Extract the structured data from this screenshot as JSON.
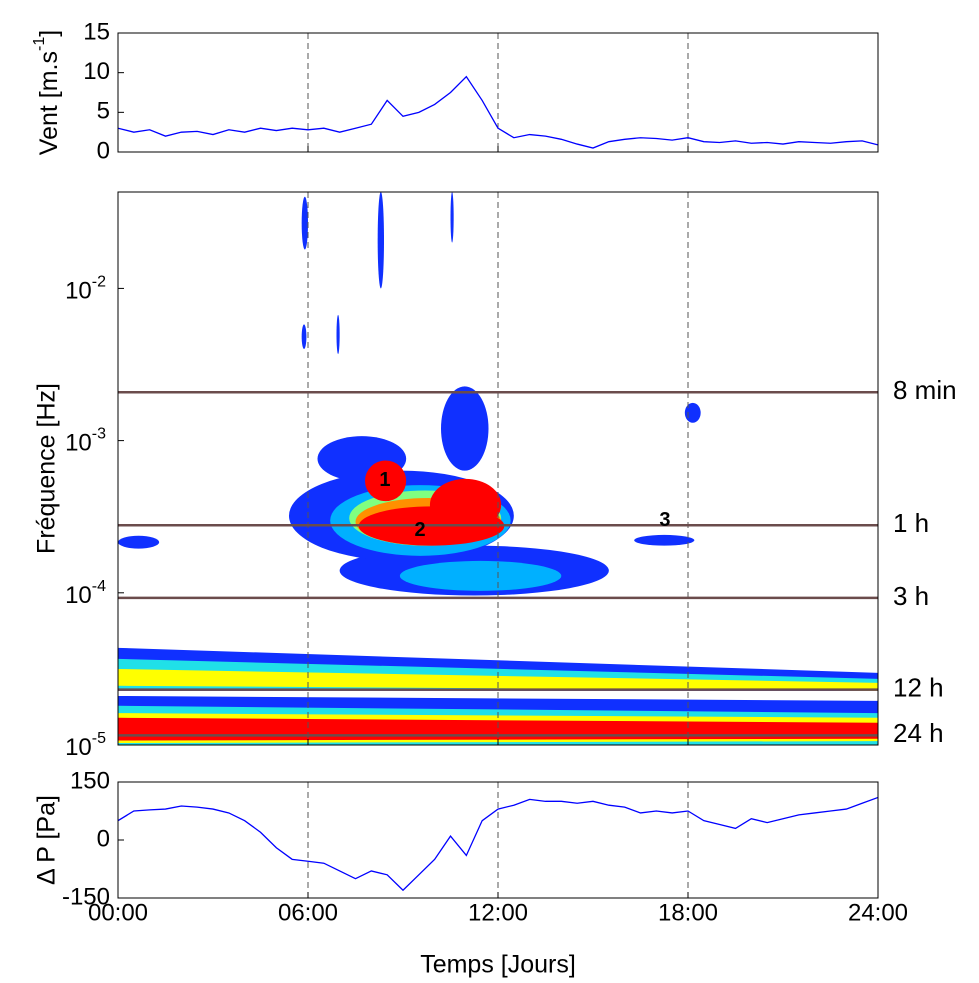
{
  "chart_data": [
    {
      "type": "line",
      "ylabel": {
        "text": "Vent [m.s",
        "sup": "-1",
        "after": "]"
      },
      "x": [
        0,
        0.5,
        1,
        1.5,
        2,
        2.5,
        3,
        3.5,
        4,
        4.5,
        5,
        5.5,
        6,
        6.5,
        7,
        7.5,
        8,
        8.5,
        9,
        9.5,
        10,
        10.5,
        11,
        11.5,
        12,
        12.5,
        13,
        13.5,
        14,
        14.5,
        15,
        15.5,
        16,
        16.5,
        17,
        17.5,
        18,
        18.5,
        19,
        19.5,
        20,
        20.5,
        21,
        21.5,
        22,
        22.5,
        23,
        23.5,
        24
      ],
      "series": [
        {
          "color": "#0000ff",
          "values": [
            3,
            2.5,
            2.8,
            2,
            2.5,
            2.6,
            2.2,
            2.8,
            2.5,
            3,
            2.7,
            3,
            2.8,
            3,
            2.5,
            3,
            3.5,
            6.5,
            4.5,
            5,
            6,
            7.5,
            9.5,
            6.5,
            3,
            1.8,
            2.2,
            2,
            1.6,
            1,
            0.5,
            1.3,
            1.6,
            1.8,
            1.7,
            1.5,
            1.8,
            1.3,
            1.2,
            1.4,
            1.1,
            1.2,
            1,
            1.3,
            1.2,
            1.1,
            1.3,
            1.4,
            0.9
          ]
        }
      ],
      "xlim": [
        0,
        24
      ],
      "xticks": [
        0,
        6,
        12,
        18,
        24
      ],
      "ylim": [
        0,
        15
      ],
      "yticks": [
        0,
        5,
        10,
        15
      ]
    },
    {
      "type": "contour",
      "log_y": true,
      "ylabel": "Fréquence [Hz]",
      "xlim": [
        0,
        24
      ],
      "xticks": [
        0,
        6,
        12,
        18,
        24
      ],
      "ylim": [
        1e-05,
        0.043
      ],
      "yticks": [
        {
          "value": 1e-05,
          "label": "10",
          "sup": "-5"
        },
        {
          "value": 0.0001,
          "label": "10",
          "sup": "-4"
        },
        {
          "value": 0.001,
          "label": "10",
          "sup": "-3"
        },
        {
          "value": 0.01,
          "label": "10",
          "sup": "-2"
        }
      ],
      "level_colors": [
        "#1030ff",
        "#0070ff",
        "#00b0ff",
        "#20e0e8",
        "#80ff80",
        "#ffff00",
        "#ff9000",
        "#ff0000"
      ],
      "bands": [
        {
          "y_start": [
            4.35e-05,
            2.27e-05
          ],
          "y_end": [
            2.98e-05,
            2.27e-05
          ],
          "level": 0
        },
        {
          "y_start": [
            3.68e-05,
            2.33e-05
          ],
          "y_end": [
            2.72e-05,
            2.33e-05
          ],
          "level": 3
        },
        {
          "y_start": [
            3.16e-05,
            2.45e-05
          ],
          "y_end": [
            2.56e-05,
            2.27e-05
          ],
          "level": 5
        },
        {
          "y_start": [
            2.1e-05,
            1e-05
          ],
          "y_end": [
            1.95e-05,
            1e-05
          ],
          "level": 0
        },
        {
          "y_start": [
            1.81e-05,
            1e-05
          ],
          "y_end": [
            1.62e-05,
            1e-05
          ],
          "level": 3
        },
        {
          "y_start": [
            1.62e-05,
            1.03e-05
          ],
          "y_end": [
            1.51e-05,
            1.06e-05
          ],
          "level": 5
        },
        {
          "y_start": [
            1.51e-05,
            1.07e-05
          ],
          "y_end": [
            1.4e-05,
            1.1e-05
          ],
          "level": 7
        }
      ],
      "regions": [
        {
          "x": [
            5.8,
            6.0
          ],
          "y": [
            0.018,
            0.04
          ],
          "level": 0
        },
        {
          "x": [
            8.2,
            8.4
          ],
          "y": [
            0.01,
            0.043
          ],
          "level": 0
        },
        {
          "x": [
            10.5,
            10.6
          ],
          "y": [
            0.02,
            0.043
          ],
          "level": 0
        },
        {
          "x": [
            5.8,
            5.95
          ],
          "y": [
            0.004,
            0.0058
          ],
          "level": 0
        },
        {
          "x": [
            6.9,
            7.0
          ],
          "y": [
            0.0037,
            0.0067
          ],
          "level": 0
        },
        {
          "x": [
            0,
            1.3
          ],
          "y": [
            0.000195,
            0.000237
          ],
          "level": 0
        },
        {
          "x": [
            16.3,
            18.2
          ],
          "y": [
            0.000204,
            0.00024
          ],
          "level": 0
        },
        {
          "x": [
            17.9,
            18.4
          ],
          "y": [
            0.00131,
            0.00177
          ],
          "level": 0
        },
        {
          "x": [
            7.0,
            15.5
          ],
          "y": [
            9.6e-05,
            0.000204
          ],
          "level": 0
        },
        {
          "x": [
            5.4,
            12.5
          ],
          "y": [
            0.000162,
            0.000635
          ],
          "level": 0
        },
        {
          "x": [
            6.3,
            9.1
          ],
          "y": [
            0.00054,
            0.00107
          ],
          "level": 0
        },
        {
          "x": [
            10.2,
            11.7
          ],
          "y": [
            0.000635,
            0.00227
          ],
          "level": 0
        },
        {
          "x": [
            6.7,
            12.4
          ],
          "y": [
            0.000175,
            0.00051
          ],
          "level": 2
        },
        {
          "x": [
            8.9,
            14.0
          ],
          "y": [
            0.000103,
            0.000162
          ],
          "level": 2
        },
        {
          "x": [
            7.3,
            12.1
          ],
          "y": [
            0.000204,
            0.00047
          ],
          "level": 4
        },
        {
          "x": [
            7.5,
            12.1
          ],
          "y": [
            0.000204,
            0.00042
          ],
          "level": 6
        },
        {
          "x": [
            7.6,
            12.2
          ],
          "y": [
            0.000204,
            0.00037
          ],
          "level": 7
        },
        {
          "x": [
            9.85,
            12.1
          ],
          "y": [
            0.000256,
            0.00056
          ],
          "level": 7
        },
        {
          "x": [
            7.8,
            9.1
          ],
          "y": [
            0.0004,
            0.00074
          ],
          "level": 7
        }
      ],
      "hlines": [
        {
          "value": 0.00208,
          "label": "8 min"
        },
        {
          "value": 0.000278,
          "label": "1 h"
        },
        {
          "value": 9.26e-05,
          "label": "3 h"
        },
        {
          "value": 2.31e-05,
          "label": "12 h"
        },
        {
          "value": 1.157e-05,
          "label": "24 h"
        }
      ],
      "hline_color": "#6b4c4c",
      "annotations": [
        {
          "text": "1",
          "x": 8.43,
          "y": 0.000546
        },
        {
          "text": "2",
          "x": 9.54,
          "y": 0.000256
        },
        {
          "text": "3",
          "x": 17.27,
          "y": 0.000297
        }
      ]
    },
    {
      "type": "line",
      "ylabel": "Δ P [Pa]",
      "xlabel": "Temps [Jours]",
      "x": [
        0,
        0.5,
        1,
        1.5,
        2,
        2.5,
        3,
        3.5,
        4,
        4.5,
        5,
        5.5,
        6,
        6.5,
        7,
        7.5,
        8,
        8.5,
        9,
        9.5,
        10,
        10.5,
        11,
        11.5,
        12,
        12.5,
        13,
        13.5,
        14,
        14.5,
        15,
        15.5,
        16,
        16.5,
        17,
        17.5,
        18,
        18.5,
        19,
        19.5,
        20,
        20.5,
        21,
        21.5,
        22,
        22.5,
        23,
        23.5,
        24
      ],
      "series": [
        {
          "color": "#0000ff",
          "values": [
            50,
            75,
            78,
            80,
            88,
            85,
            80,
            70,
            50,
            20,
            -20,
            -50,
            -55,
            -60,
            -80,
            -100,
            -80,
            -90,
            -130,
            -90,
            -50,
            10,
            -40,
            50,
            80,
            90,
            105,
            100,
            100,
            95,
            100,
            90,
            85,
            70,
            75,
            70,
            75,
            50,
            40,
            30,
            55,
            45,
            55,
            65,
            70,
            75,
            80,
            95,
            110
          ]
        }
      ],
      "xlim": [
        0,
        24
      ],
      "xticks": [
        {
          "value": 0,
          "label": "00:00"
        },
        {
          "value": 6,
          "label": "06:00"
        },
        {
          "value": 12,
          "label": "12:00"
        },
        {
          "value": 18,
          "label": "18:00"
        },
        {
          "value": 24,
          "label": "24:00"
        }
      ],
      "ylim": [
        -150,
        150
      ],
      "yticks": [
        -150,
        0,
        150
      ]
    }
  ]
}
